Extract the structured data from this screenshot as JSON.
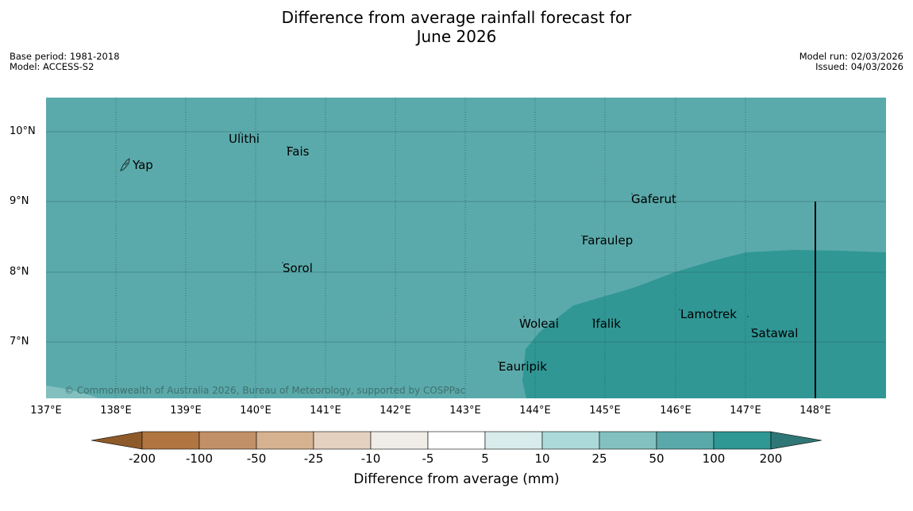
{
  "title": {
    "line1": "Difference from average rainfall forecast for",
    "line2": "June 2026"
  },
  "meta_left": {
    "base_period": "Base period: 1981-2018",
    "model": "Model: ACCESS-S2"
  },
  "meta_right": {
    "model_run": "Model run: 02/03/2026",
    "issued": "Issued: 04/03/2026"
  },
  "lat_labels": [
    "10°N",
    "9°N",
    "8°N",
    "7°N"
  ],
  "lon_labels": [
    "137°E",
    "138°E",
    "139°E",
    "140°E",
    "141°E",
    "142°E",
    "143°E",
    "144°E",
    "145°E",
    "146°E",
    "147°E",
    "148°E"
  ],
  "places": {
    "yap": "Yap",
    "ulithi": "Ulithi",
    "fais": "Fais",
    "gaferut": "Gaferut",
    "faraulep": "Faraulep",
    "sorol": "Sorol",
    "lamotrek": "Lamotrek",
    "woleai": "Woleai",
    "ifalik": "Ifalik",
    "satawal": "Satawal",
    "eauripik": "Eauripik"
  },
  "copyright": "© Commonwealth of Australia 2026, Bureau of Meteorology, supported by COSPPac",
  "colorbar": {
    "labels": [
      "-200",
      "-100",
      "-50",
      "-25",
      "-10",
      "-5",
      "5",
      "10",
      "25",
      "50",
      "100",
      "200"
    ],
    "colors": [
      "#8e5a2a",
      "#b07540",
      "#c29068",
      "#d6b290",
      "#e5d1c0",
      "#f0ede8",
      "#ffffff",
      "#d8ecec",
      "#acd9d9",
      "#82c1c0",
      "#5aa9aa",
      "#2f9794",
      "#2f7776"
    ],
    "title": "Difference from average (mm)"
  },
  "map_colors": {
    "category_50_100": "#5baaab",
    "category_100_200": "#309795",
    "category_25_50": "#82c0bf"
  }
}
